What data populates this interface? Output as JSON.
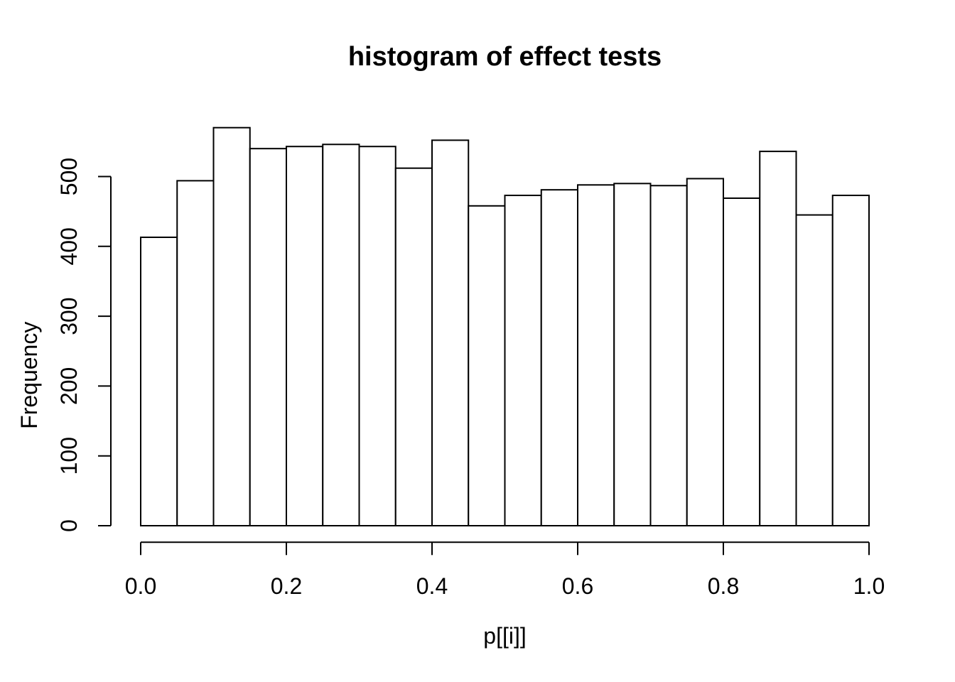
{
  "figure": {
    "background": "#ffffff",
    "foreground": "#000000"
  },
  "chart_data": {
    "type": "bar",
    "subtype": "histogram",
    "title": "histogram of effect tests",
    "xlabel": "p[[i]]",
    "ylabel": "Frequency",
    "bin_start": 0.0,
    "bin_width": 0.05,
    "categories": [
      "0.00-0.05",
      "0.05-0.10",
      "0.10-0.15",
      "0.15-0.20",
      "0.20-0.25",
      "0.25-0.30",
      "0.30-0.35",
      "0.35-0.40",
      "0.40-0.45",
      "0.45-0.50",
      "0.50-0.55",
      "0.55-0.60",
      "0.60-0.65",
      "0.65-0.70",
      "0.70-0.75",
      "0.75-0.80",
      "0.80-0.85",
      "0.85-0.90",
      "0.90-0.95",
      "0.95-1.00"
    ],
    "values": [
      413,
      494,
      570,
      540,
      543,
      546,
      543,
      512,
      552,
      458,
      473,
      481,
      488,
      490,
      487,
      497,
      469,
      536,
      445,
      473
    ],
    "xlim": [
      0.0,
      1.0
    ],
    "ylim": [
      0,
      500
    ],
    "xticks": [
      0.0,
      0.2,
      0.4,
      0.6,
      0.8,
      1.0
    ],
    "xtick_labels": [
      "0.0",
      "0.2",
      "0.4",
      "0.6",
      "0.8",
      "1.0"
    ],
    "yticks": [
      0,
      100,
      200,
      300,
      400,
      500
    ],
    "ytick_labels": [
      "0",
      "100",
      "200",
      "300",
      "400",
      "500"
    ],
    "grid": false,
    "legend": false,
    "bar_fill": "#ffffff",
    "bar_stroke": "#000000",
    "axis_color": "#000000"
  }
}
